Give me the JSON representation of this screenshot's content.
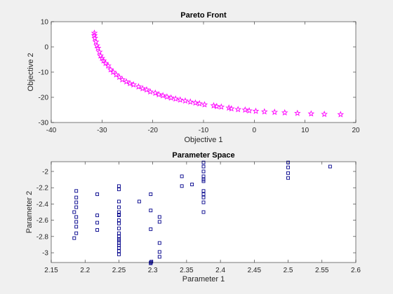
{
  "chart_data": [
    {
      "type": "scatter",
      "title": "Pareto Front",
      "xlabel": "Objective 1",
      "ylabel": "Objective 2",
      "xlim": [
        -40,
        20
      ],
      "ylim": [
        -30,
        10
      ],
      "xticks": [
        -40,
        -30,
        -20,
        -10,
        0,
        10,
        20
      ],
      "yticks": [
        -30,
        -20,
        -10,
        0,
        10
      ],
      "grid": false,
      "marker": "star",
      "color": "#ff00ff",
      "series": [
        {
          "x": [
            -31.5,
            -31.5,
            -31.4,
            -31.2,
            -31.0,
            -30.8,
            -30.5,
            -30.3,
            -30.0,
            -29.7,
            -29.3,
            -28.8,
            -28.3,
            -27.8,
            -27.2,
            -26.6,
            -26.0,
            -25.2,
            -24.5,
            -23.8,
            -22.8,
            -22.0,
            -21.2,
            -20.5,
            -19.5,
            -18.8,
            -18.0,
            -17.2,
            -16.4,
            -15.5,
            -14.6,
            -13.6,
            -12.6,
            -11.6,
            -10.8,
            -9.8,
            -8.0,
            -7.4,
            -6.5,
            -5.0,
            -4.5,
            -3.2,
            -1.8,
            -1.0,
            0.3,
            2.0,
            4.0,
            6.0,
            8.5,
            11.2,
            13.8,
            17.0
          ],
          "y": [
            5.5,
            4.5,
            3.5,
            2.0,
            0.5,
            -0.5,
            -2.0,
            -3.5,
            -4.5,
            -5.5,
            -6.5,
            -7.5,
            -9.0,
            -10.0,
            -11.0,
            -12.0,
            -13.0,
            -13.8,
            -14.5,
            -15.0,
            -15.8,
            -16.5,
            -17.0,
            -17.8,
            -18.3,
            -18.9,
            -19.3,
            -19.8,
            -20.2,
            -20.6,
            -21.0,
            -21.4,
            -21.8,
            -22.2,
            -22.5,
            -22.9,
            -23.3,
            -23.6,
            -23.8,
            -24.2,
            -24.5,
            -24.8,
            -25.0,
            -25.3,
            -25.5,
            -25.7,
            -25.9,
            -26.1,
            -26.3,
            -26.5,
            -26.7,
            -26.8
          ]
        }
      ]
    },
    {
      "type": "scatter",
      "title": "Parameter Space",
      "xlabel": "Parameter 1",
      "ylabel": "Parameter 2",
      "xlim": [
        2.15,
        2.6
      ],
      "ylim": [
        -3.12,
        -1.88
      ],
      "xticks": [
        2.15,
        2.2,
        2.25,
        2.3,
        2.35,
        2.4,
        2.45,
        2.5,
        2.55,
        2.6
      ],
      "yticks": [
        -3.0,
        -2.8,
        -2.6,
        -2.4,
        -2.2,
        -2.0
      ],
      "xticklabels": [
        "2.15",
        "2.2",
        "2.25",
        "2.3",
        "2.35",
        "2.4",
        "2.45",
        "2.5",
        "2.55",
        "2.6"
      ],
      "yticklabels": [
        "-3",
        "-2.8",
        "-2.6",
        "-2.4",
        "-2.2",
        "-2"
      ],
      "grid": false,
      "marker": "square",
      "color": "#00008b",
      "series": [
        {
          "x": [
            2.184,
            2.184,
            2.187,
            2.187,
            2.187,
            2.187,
            2.187,
            2.187,
            2.187,
            2.187,
            2.218,
            2.218,
            2.218,
            2.218,
            2.25,
            2.25,
            2.25,
            2.25,
            2.25,
            2.25,
            2.25,
            2.25,
            2.25,
            2.25,
            2.25,
            2.25,
            2.25,
            2.25,
            2.25,
            2.25,
            2.25,
            2.25,
            2.25,
            2.28,
            2.297,
            2.297,
            2.297,
            2.297,
            2.297,
            2.298,
            2.31,
            2.31,
            2.31,
            2.31,
            2.31,
            2.343,
            2.343,
            2.358,
            2.375,
            2.375,
            2.375,
            2.375,
            2.375,
            2.375,
            2.375,
            2.375,
            2.375,
            2.375,
            2.375,
            2.5,
            2.5,
            2.5,
            2.5,
            2.562
          ],
          "y": [
            -2.5,
            -2.82,
            -2.24,
            -2.32,
            -2.38,
            -2.44,
            -2.56,
            -2.62,
            -2.68,
            -2.76,
            -2.28,
            -2.54,
            -2.63,
            -2.72,
            -2.18,
            -2.22,
            -2.37,
            -2.44,
            -2.5,
            -2.54,
            -2.6,
            -2.7,
            -2.76,
            -2.8,
            -2.83,
            -2.88,
            -2.91,
            -2.94,
            -2.98,
            -3.02,
            -2.53,
            -2.64,
            -2.85,
            -2.37,
            -2.28,
            -2.48,
            -2.71,
            -3.12,
            -3.13,
            -3.11,
            -2.56,
            -2.62,
            -2.88,
            -2.99,
            -3.05,
            -2.06,
            -2.18,
            -2.16,
            -1.89,
            -1.94,
            -2.0,
            -2.06,
            -2.12,
            -2.24,
            -2.28,
            -2.32,
            -2.38,
            -2.5,
            -2.1,
            -1.89,
            -1.95,
            -2.02,
            -2.08,
            -1.94
          ]
        }
      ]
    }
  ]
}
